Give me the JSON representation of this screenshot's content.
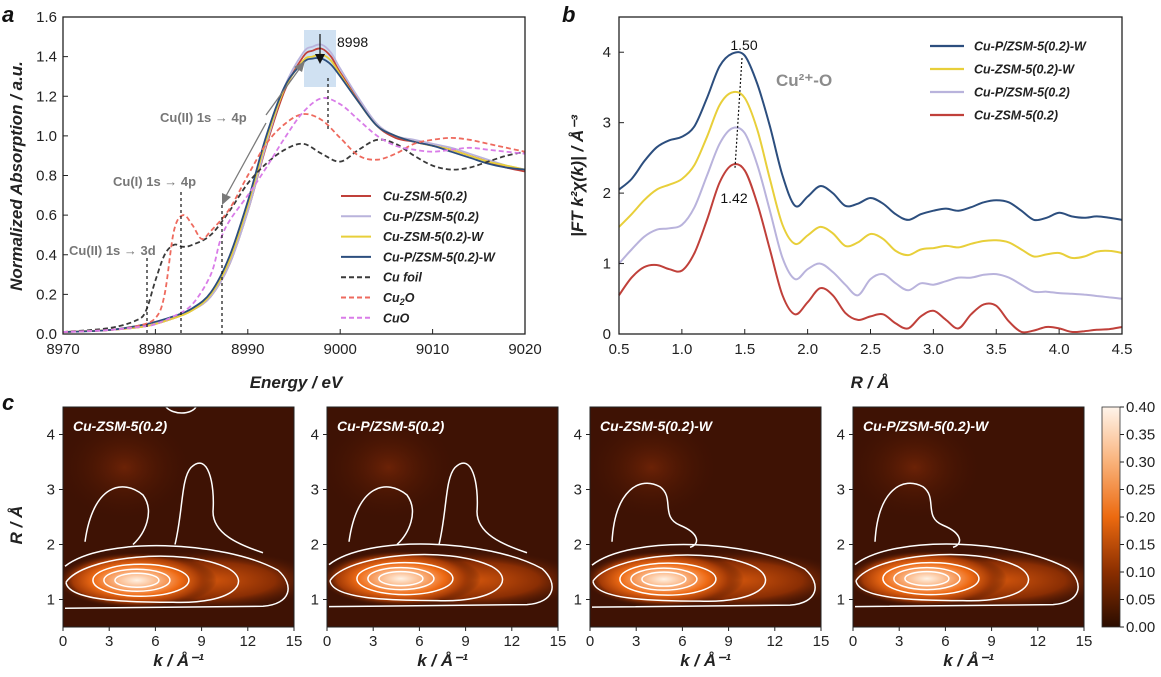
{
  "panel_labels": {
    "a": "a",
    "b": "b",
    "c": "c"
  },
  "colors": {
    "cu_zsm5": "#c0403a",
    "cu_p_zsm5": "#b9b3dc",
    "cu_zsm5_w": "#e8cf3a",
    "cu_p_zsm5_w": "#2c4e7e",
    "cu_foil": "#3a3a3a",
    "cu2o": "#ee6a5e",
    "cuo": "#d97ce8",
    "annotation_gray": "#7a7a7a",
    "highlight": "#c8dcf0"
  },
  "chart_data": [
    {
      "id": "a",
      "type": "line",
      "xlabel": "Energy / eV",
      "ylabel": "Normalized Absorption / a.u.",
      "xlim": [
        8970,
        9020
      ],
      "ylim": [
        0,
        1.6
      ],
      "xticks": [
        "8970",
        "8980",
        "8990",
        "9000",
        "9010",
        "9020"
      ],
      "yticks": [
        "0.0",
        "0.2",
        "0.4",
        "0.6",
        "0.8",
        "1.0",
        "1.2",
        "1.4",
        "1.6"
      ],
      "legend_position": "lower-right",
      "annotations": {
        "peak": "8998",
        "cu2_3d": "Cu(II) 1s → 3d",
        "cu1_4p": "Cu(I) 1s → 4p",
        "cu2_4p": "Cu(II) 1s → 4p"
      },
      "series": [
        {
          "name": "Cu-ZSM-5(0.2)",
          "style": "solid",
          "x": [
            8970,
            8975,
            8979,
            8982,
            8984,
            8986,
            8988,
            8990,
            8992,
            8994,
            8996,
            8997,
            8998,
            8999,
            9000,
            9002,
            9004,
            9006,
            9008,
            9010,
            9012,
            9014,
            9016,
            9018,
            9020
          ],
          "y": [
            0.01,
            0.02,
            0.04,
            0.08,
            0.12,
            0.19,
            0.35,
            0.62,
            0.95,
            1.23,
            1.4,
            1.43,
            1.44,
            1.4,
            1.32,
            1.18,
            1.05,
            0.99,
            0.97,
            0.95,
            0.93,
            0.9,
            0.87,
            0.84,
            0.82
          ]
        },
        {
          "name": "Cu-P/ZSM-5(0.2)",
          "style": "solid",
          "x": [
            8970,
            8975,
            8979,
            8982,
            8984,
            8986,
            8988,
            8990,
            8992,
            8994,
            8996,
            8997,
            8998,
            8999,
            9000,
            9002,
            9004,
            9006,
            9008,
            9010,
            9012,
            9014,
            9016,
            9018,
            9020
          ],
          "y": [
            0.01,
            0.02,
            0.04,
            0.08,
            0.12,
            0.19,
            0.35,
            0.62,
            0.96,
            1.25,
            1.42,
            1.45,
            1.46,
            1.42,
            1.34,
            1.19,
            1.06,
            1.0,
            0.98,
            0.96,
            0.94,
            0.91,
            0.88,
            0.85,
            0.83
          ]
        },
        {
          "name": "Cu-ZSM-5(0.2)-W",
          "style": "solid",
          "x": [
            8970,
            8975,
            8979,
            8982,
            8984,
            8986,
            8988,
            8990,
            8992,
            8994,
            8996,
            8997,
            8998,
            8999,
            9000,
            9002,
            9004,
            9006,
            9008,
            9010,
            9012,
            9014,
            9016,
            9018,
            9020
          ],
          "y": [
            0.01,
            0.02,
            0.04,
            0.08,
            0.12,
            0.2,
            0.37,
            0.65,
            0.98,
            1.24,
            1.38,
            1.4,
            1.41,
            1.38,
            1.31,
            1.17,
            1.05,
            1.0,
            0.97,
            0.95,
            0.93,
            0.9,
            0.87,
            0.85,
            0.83
          ]
        },
        {
          "name": "Cu-P/ZSM-5(0.2)-W",
          "style": "solid",
          "x": [
            8970,
            8975,
            8979,
            8982,
            8984,
            8986,
            8988,
            8990,
            8992,
            8994,
            8996,
            8997,
            8998,
            8999,
            9000,
            9002,
            9004,
            9006,
            9008,
            9010,
            9012,
            9014,
            9016,
            9018,
            9020
          ],
          "y": [
            0.01,
            0.02,
            0.05,
            0.09,
            0.13,
            0.21,
            0.39,
            0.67,
            1.0,
            1.25,
            1.37,
            1.39,
            1.39,
            1.36,
            1.3,
            1.17,
            1.05,
            1.0,
            0.97,
            0.95,
            0.92,
            0.89,
            0.86,
            0.84,
            0.83
          ]
        },
        {
          "name": "Cu foil",
          "style": "dash",
          "x": [
            8970,
            8975,
            8978,
            8979,
            8980,
            8981,
            8982,
            8983,
            8984,
            8986,
            8988,
            8990,
            8992,
            8994,
            8996,
            8998,
            9000,
            9002,
            9004,
            9006,
            9008,
            9010,
            9012,
            9014,
            9016,
            9018,
            9020
          ],
          "y": [
            0.01,
            0.03,
            0.07,
            0.12,
            0.27,
            0.4,
            0.45,
            0.44,
            0.45,
            0.5,
            0.62,
            0.76,
            0.86,
            0.93,
            0.96,
            0.91,
            0.87,
            0.93,
            0.98,
            0.96,
            0.9,
            0.85,
            0.83,
            0.84,
            0.87,
            0.9,
            0.92
          ]
        },
        {
          "name": "Cu2O",
          "style": "dash",
          "x": [
            8970,
            8975,
            8978,
            8980,
            8981,
            8982,
            8983,
            8984,
            8985,
            8986,
            8988,
            8990,
            8992,
            8994,
            8996,
            8998,
            9000,
            9002,
            9004,
            9006,
            9008,
            9010,
            9012,
            9014,
            9016,
            9018,
            9020
          ],
          "y": [
            0.01,
            0.02,
            0.04,
            0.08,
            0.2,
            0.52,
            0.6,
            0.55,
            0.48,
            0.52,
            0.63,
            0.8,
            0.96,
            1.06,
            1.11,
            1.08,
            0.99,
            0.9,
            0.88,
            0.91,
            0.96,
            0.98,
            0.99,
            0.98,
            0.96,
            0.94,
            0.92
          ]
        },
        {
          "name": "CuO",
          "style": "dash",
          "x": [
            8970,
            8975,
            8979,
            8980,
            8982,
            8984,
            8986,
            8987,
            8988,
            8990,
            8992,
            8994,
            8996,
            8998,
            9000,
            9002,
            9004,
            9006,
            9008,
            9010,
            9012,
            9014,
            9016,
            9018,
            9020
          ],
          "y": [
            0.01,
            0.02,
            0.04,
            0.05,
            0.09,
            0.15,
            0.3,
            0.47,
            0.57,
            0.7,
            0.84,
            0.99,
            1.12,
            1.19,
            1.16,
            1.08,
            1.0,
            0.95,
            0.93,
            0.92,
            0.93,
            0.94,
            0.93,
            0.92,
            0.91
          ]
        }
      ]
    },
    {
      "id": "b",
      "type": "line",
      "xlabel": "R / Å",
      "ylabel": "|FT k²χ(k)| / Å⁻³",
      "xlim": [
        0.5,
        4.5
      ],
      "ylim": [
        0,
        4.5
      ],
      "xticks": [
        "0.5",
        "1.0",
        "1.5",
        "2.0",
        "2.5",
        "3.0",
        "3.5",
        "4.0",
        "4.5"
      ],
      "yticks": [
        "0",
        "1",
        "2",
        "3",
        "4"
      ],
      "legend_position": "top-right",
      "annotations": {
        "peak_high": "1.50",
        "peak_low": "1.42",
        "bond": "Cu²⁺-O"
      },
      "series": [
        {
          "name": "Cu-P/ZSM-5(0.2)-W",
          "x": [
            0.5,
            0.6,
            0.7,
            0.8,
            0.9,
            1.0,
            1.1,
            1.2,
            1.3,
            1.4,
            1.5,
            1.6,
            1.7,
            1.8,
            1.9,
            2.0,
            2.1,
            2.2,
            2.3,
            2.4,
            2.5,
            2.6,
            2.7,
            2.8,
            2.9,
            3.0,
            3.1,
            3.2,
            3.3,
            3.4,
            3.5,
            3.6,
            3.7,
            3.8,
            3.9,
            4.0,
            4.1,
            4.2,
            4.3,
            4.4,
            4.5
          ],
          "y": [
            2.05,
            2.2,
            2.45,
            2.65,
            2.75,
            2.8,
            2.95,
            3.35,
            3.8,
            3.98,
            3.95,
            3.55,
            2.95,
            2.25,
            1.82,
            1.95,
            2.1,
            2.0,
            1.82,
            1.85,
            1.93,
            1.85,
            1.7,
            1.62,
            1.7,
            1.75,
            1.78,
            1.75,
            1.8,
            1.87,
            1.9,
            1.87,
            1.75,
            1.62,
            1.65,
            1.72,
            1.67,
            1.65,
            1.67,
            1.65,
            1.62
          ]
        },
        {
          "name": "Cu-ZSM-5(0.2)-W",
          "x": [
            0.5,
            0.6,
            0.7,
            0.8,
            0.9,
            1.0,
            1.1,
            1.2,
            1.3,
            1.4,
            1.5,
            1.6,
            1.7,
            1.8,
            1.9,
            2.0,
            2.1,
            2.2,
            2.3,
            2.4,
            2.5,
            2.6,
            2.7,
            2.8,
            2.9,
            3.0,
            3.1,
            3.2,
            3.3,
            3.4,
            3.5,
            3.6,
            3.7,
            3.8,
            3.9,
            4.0,
            4.1,
            4.2,
            4.3,
            4.4,
            4.5
          ],
          "y": [
            1.52,
            1.7,
            1.9,
            2.05,
            2.12,
            2.2,
            2.4,
            2.8,
            3.25,
            3.43,
            3.35,
            2.9,
            2.2,
            1.55,
            1.28,
            1.4,
            1.52,
            1.43,
            1.25,
            1.3,
            1.42,
            1.35,
            1.18,
            1.12,
            1.2,
            1.22,
            1.25,
            1.23,
            1.28,
            1.32,
            1.33,
            1.3,
            1.2,
            1.1,
            1.13,
            1.15,
            1.08,
            1.1,
            1.17,
            1.18,
            1.15
          ]
        },
        {
          "name": "Cu-P/ZSM-5(0.2)",
          "x": [
            0.5,
            0.6,
            0.7,
            0.8,
            0.9,
            1.0,
            1.1,
            1.2,
            1.3,
            1.4,
            1.5,
            1.6,
            1.7,
            1.8,
            1.9,
            2.0,
            2.1,
            2.2,
            2.3,
            2.4,
            2.5,
            2.6,
            2.7,
            2.8,
            2.9,
            3.0,
            3.1,
            3.2,
            3.3,
            3.4,
            3.5,
            3.6,
            3.7,
            3.8,
            3.9,
            4.0,
            4.1,
            4.2,
            4.3,
            4.4,
            4.5
          ],
          "y": [
            1.0,
            1.2,
            1.38,
            1.48,
            1.5,
            1.55,
            1.8,
            2.25,
            2.7,
            2.92,
            2.85,
            2.4,
            1.75,
            1.08,
            0.78,
            0.92,
            1.0,
            0.88,
            0.7,
            0.55,
            0.78,
            0.85,
            0.72,
            0.62,
            0.72,
            0.7,
            0.75,
            0.8,
            0.8,
            0.84,
            0.85,
            0.8,
            0.7,
            0.6,
            0.6,
            0.58,
            0.57,
            0.56,
            0.54,
            0.52,
            0.5
          ]
        },
        {
          "name": "Cu-ZSM-5(0.2)",
          "x": [
            0.5,
            0.6,
            0.7,
            0.8,
            0.9,
            1.0,
            1.1,
            1.2,
            1.3,
            1.4,
            1.5,
            1.6,
            1.7,
            1.8,
            1.9,
            2.0,
            2.1,
            2.2,
            2.3,
            2.4,
            2.5,
            2.6,
            2.7,
            2.8,
            2.9,
            3.0,
            3.1,
            3.2,
            3.3,
            3.4,
            3.5,
            3.6,
            3.7,
            3.8,
            3.9,
            4.0,
            4.1,
            4.2,
            4.3,
            4.4,
            4.5
          ],
          "y": [
            0.55,
            0.8,
            0.95,
            0.98,
            0.92,
            0.9,
            1.15,
            1.62,
            2.15,
            2.4,
            2.32,
            1.85,
            1.2,
            0.55,
            0.28,
            0.45,
            0.65,
            0.55,
            0.3,
            0.2,
            0.25,
            0.28,
            0.15,
            0.08,
            0.25,
            0.33,
            0.2,
            0.08,
            0.28,
            0.42,
            0.4,
            0.18,
            0.03,
            0.05,
            0.1,
            0.08,
            0.03,
            0.04,
            0.06,
            0.07,
            0.1
          ]
        }
      ]
    },
    {
      "id": "c",
      "type": "heatmap",
      "xlabel": "k / Å⁻¹",
      "ylabel": "R / Å",
      "xlim": [
        0,
        15
      ],
      "ylim": [
        0.5,
        4.5
      ],
      "xticks": [
        "0",
        "3",
        "6",
        "9",
        "12",
        "15"
      ],
      "yticks": [
        "1",
        "2",
        "3",
        "4"
      ],
      "colorbar": {
        "min": 0,
        "max": 0.4,
        "ticks": [
          "0.00",
          "0.05",
          "0.10",
          "0.15",
          "0.20",
          "0.25",
          "0.30",
          "0.35",
          "0.40"
        ]
      },
      "panels": [
        {
          "title": "Cu-ZSM-5(0.2)",
          "peak_k": 4.8,
          "peak_R": 1.35,
          "max": 0.4
        },
        {
          "title": "Cu-P/ZSM-5(0.2)",
          "peak_k": 4.8,
          "peak_R": 1.38,
          "max": 0.39
        },
        {
          "title": "Cu-ZSM-5(0.2)-W",
          "peak_k": 4.8,
          "peak_R": 1.37,
          "max": 0.38
        },
        {
          "title": "Cu-P/ZSM-5(0.2)-W",
          "peak_k": 4.8,
          "peak_R": 1.38,
          "max": 0.38
        }
      ]
    }
  ]
}
